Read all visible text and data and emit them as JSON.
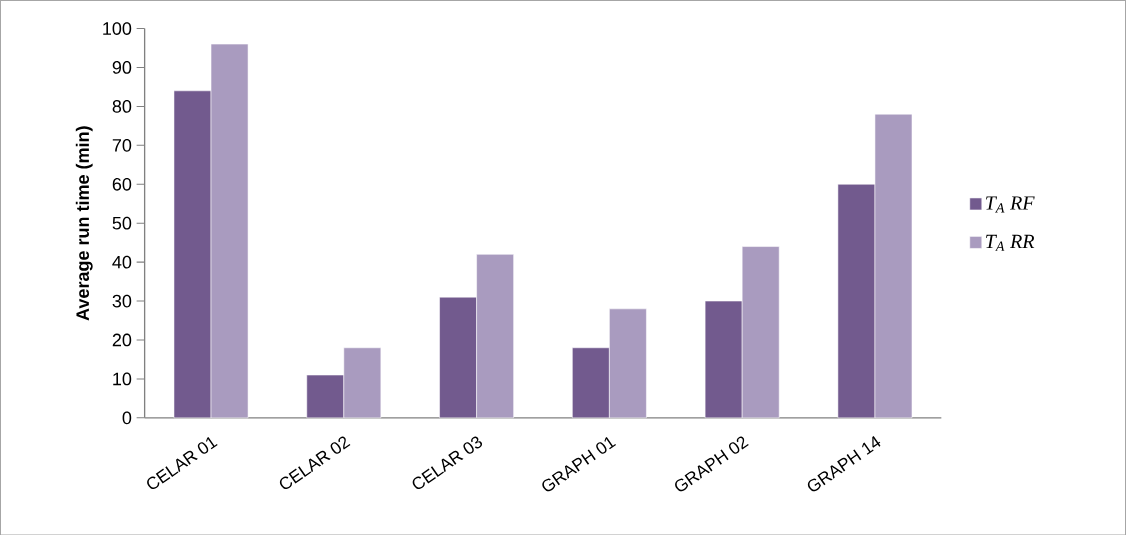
{
  "chart_data": {
    "type": "bar",
    "ylabel": "Average run time (min)",
    "categories": [
      "CELAR 01",
      "CELAR 02",
      "CELAR 03",
      "GRAPH 01",
      "GRAPH 02",
      "GRAPH 14"
    ],
    "series": [
      {
        "name": "T$_{A}$ RF",
        "color": "#725a8e",
        "values": [
          84,
          11,
          31,
          18,
          30,
          60
        ]
      },
      {
        "name": "T$_{A}$ RR",
        "color": "#a99bbf",
        "values": [
          96,
          18,
          42,
          28,
          44,
          78
        ]
      }
    ],
    "ylim": [
      0,
      100
    ],
    "yticks": [
      0,
      10,
      20,
      30,
      40,
      50,
      60,
      70,
      80,
      90,
      100
    ],
    "grid": false,
    "legend": "right"
  }
}
